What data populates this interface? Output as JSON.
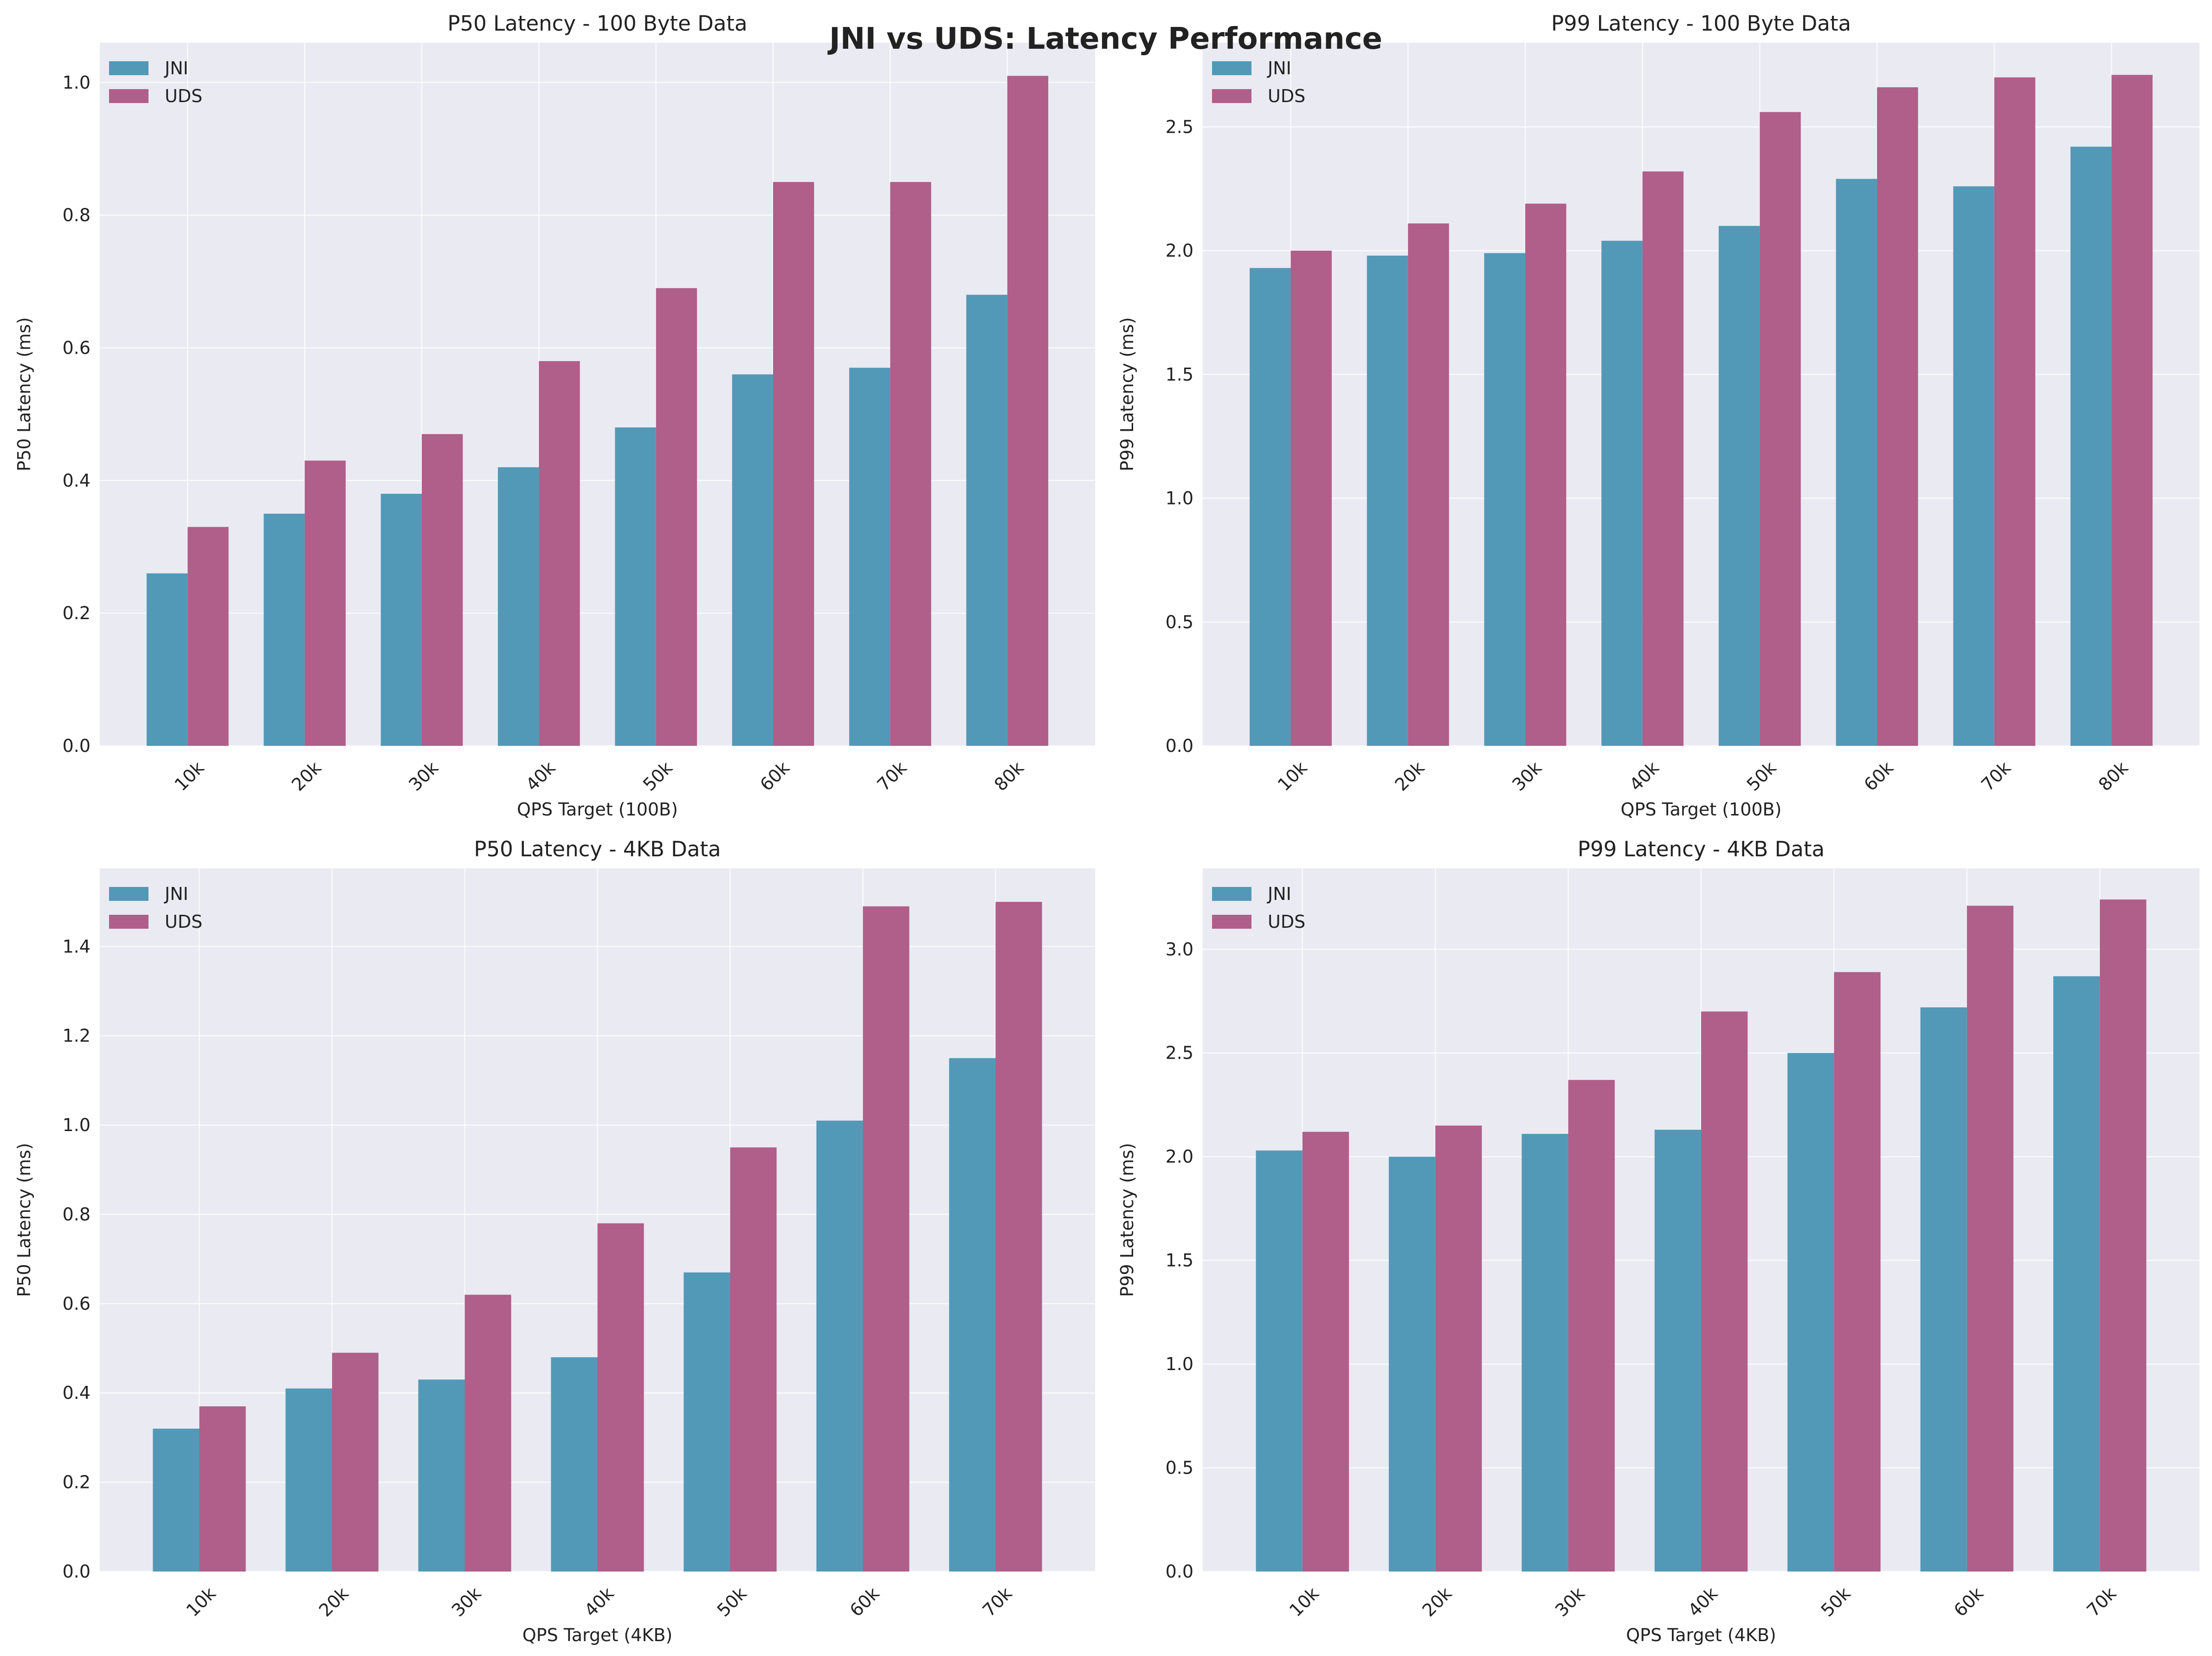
{
  "figure": {
    "suptitle": "JNI vs UDS: Latency Performance"
  },
  "colors": {
    "background": "#EAEAF2",
    "grid": "#FFFFFF",
    "JNI": "#5299B8",
    "UDS": "#B05E8A"
  },
  "chart_data": [
    {
      "type": "bar",
      "title": "P50 Latency - 100 Byte Data",
      "xlabel": "QPS Target (100B)",
      "ylabel": "P50 Latency (ms)",
      "categories": [
        "10k",
        "20k",
        "30k",
        "40k",
        "50k",
        "60k",
        "70k",
        "80k"
      ],
      "ylim": [
        0,
        1.06
      ],
      "yticks": [
        0.0,
        0.2,
        0.4,
        0.6,
        0.8,
        1.0
      ],
      "ytick_labels": [
        "0.0",
        "0.2",
        "0.4",
        "0.6",
        "0.8",
        "1.0"
      ],
      "grid": true,
      "legend": "top-left",
      "series": [
        {
          "name": "JNI",
          "values": [
            0.26,
            0.35,
            0.38,
            0.42,
            0.48,
            0.56,
            0.57,
            0.68
          ]
        },
        {
          "name": "UDS",
          "values": [
            0.33,
            0.43,
            0.47,
            0.58,
            0.69,
            0.85,
            0.85,
            1.01
          ]
        }
      ]
    },
    {
      "type": "bar",
      "title": "P99 Latency - 100 Byte Data",
      "xlabel": "QPS Target (100B)",
      "ylabel": "P99 Latency (ms)",
      "categories": [
        "10k",
        "20k",
        "30k",
        "40k",
        "50k",
        "60k",
        "70k",
        "80k"
      ],
      "ylim": [
        0,
        2.84
      ],
      "yticks": [
        0.0,
        0.5,
        1.0,
        1.5,
        2.0,
        2.5
      ],
      "ytick_labels": [
        "0.0",
        "0.5",
        "1.0",
        "1.5",
        "2.0",
        "2.5"
      ],
      "grid": true,
      "legend": "top-left",
      "series": [
        {
          "name": "JNI",
          "values": [
            1.93,
            1.98,
            1.99,
            2.04,
            2.1,
            2.29,
            2.26,
            2.42
          ]
        },
        {
          "name": "UDS",
          "values": [
            2.0,
            2.11,
            2.19,
            2.32,
            2.56,
            2.66,
            2.7,
            2.71
          ]
        }
      ]
    },
    {
      "type": "bar",
      "title": "P50 Latency - 4KB Data",
      "xlabel": "QPS Target (4KB)",
      "ylabel": "P50 Latency (ms)",
      "categories": [
        "10k",
        "20k",
        "30k",
        "40k",
        "50k",
        "60k",
        "70k"
      ],
      "ylim": [
        0,
        1.575
      ],
      "yticks": [
        0.0,
        0.2,
        0.4,
        0.6,
        0.8,
        1.0,
        1.2,
        1.4
      ],
      "ytick_labels": [
        "0.0",
        "0.2",
        "0.4",
        "0.6",
        "0.8",
        "1.0",
        "1.2",
        "1.4"
      ],
      "grid": true,
      "legend": "top-left",
      "series": [
        {
          "name": "JNI",
          "values": [
            0.32,
            0.41,
            0.43,
            0.48,
            0.67,
            1.01,
            1.15
          ]
        },
        {
          "name": "UDS",
          "values": [
            0.37,
            0.49,
            0.62,
            0.78,
            0.95,
            1.49,
            1.5
          ]
        }
      ]
    },
    {
      "type": "bar",
      "title": "P99 Latency - 4KB Data",
      "xlabel": "QPS Target (4KB)",
      "ylabel": "P99 Latency (ms)",
      "categories": [
        "10k",
        "20k",
        "30k",
        "40k",
        "50k",
        "60k",
        "70k"
      ],
      "ylim": [
        0,
        3.39
      ],
      "yticks": [
        0.0,
        0.5,
        1.0,
        1.5,
        2.0,
        2.5,
        3.0
      ],
      "ytick_labels": [
        "0.0",
        "0.5",
        "1.0",
        "1.5",
        "2.0",
        "2.5",
        "3.0"
      ],
      "grid": true,
      "legend": "top-left",
      "series": [
        {
          "name": "JNI",
          "values": [
            2.03,
            2.0,
            2.11,
            2.13,
            2.5,
            2.72,
            2.87
          ]
        },
        {
          "name": "UDS",
          "values": [
            2.12,
            2.15,
            2.37,
            2.7,
            2.89,
            3.21,
            3.24
          ]
        }
      ]
    }
  ]
}
